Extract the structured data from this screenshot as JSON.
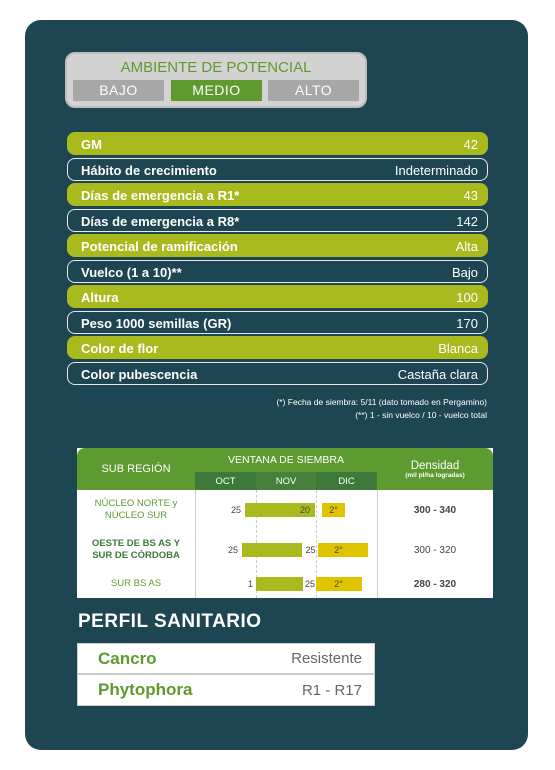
{
  "ambiente": {
    "title": "AMBIENTE DE POTENCIAL",
    "options": [
      "BAJO",
      "MEDIO",
      "ALTO"
    ],
    "selected": 1
  },
  "traits": [
    {
      "label": "GM",
      "value": 42
    },
    {
      "label": "Hábito de crecimiento",
      "value": "Indeterminado"
    },
    {
      "label": "Días de emergencia a R1*",
      "value": 43
    },
    {
      "label": "Días de emergencia a R8*",
      "value": 142
    },
    {
      "label": "Potencial de ramificación",
      "value": "Alta"
    },
    {
      "label": "Vuelco (1 a 10)**",
      "value": "Bajo"
    },
    {
      "label": "Altura",
      "value": 100
    },
    {
      "label": "Peso 1000 semillas (GR)",
      "value": 170
    },
    {
      "label": "Color de flor",
      "value": "Blanca"
    },
    {
      "label": "Color pubescencia",
      "value": "Castaña clara"
    }
  ],
  "footnotes": [
    "(*) Fecha de siembra: 5/11 (dato tomado en Pergamino)",
    "(**) 1 - sin vuelco / 10 - vuelco total"
  ],
  "sowing": {
    "headers": {
      "region": "SUB REGIÓN",
      "window": "VENTANA DE SIEMBRA",
      "months": [
        "OCT",
        "NOV",
        "DIC"
      ],
      "density": "Densidad",
      "density_unit": "(mil pl/ha logradas)"
    },
    "rows": [
      {
        "region": "NÚCLEO NORTE y NÚCLEO SUR",
        "start": 25,
        "end": 20,
        "second": "2°",
        "density": "300 - 340"
      },
      {
        "region": "OESTE DE BS AS Y SUR DE CÓRDOBA",
        "start": 25,
        "end": 25,
        "second": "2°",
        "density": "300 - 320"
      },
      {
        "region": "SUR BS AS",
        "start": 1,
        "end": 25,
        "second": "2°",
        "density": "280 - 320"
      }
    ]
  },
  "sanitario": {
    "title": "PERFIL SANITARIO",
    "rows": [
      {
        "disease": "Cancro",
        "status": "Resistente"
      },
      {
        "disease": "Phytophora",
        "status": "R1 - R17"
      }
    ]
  }
}
